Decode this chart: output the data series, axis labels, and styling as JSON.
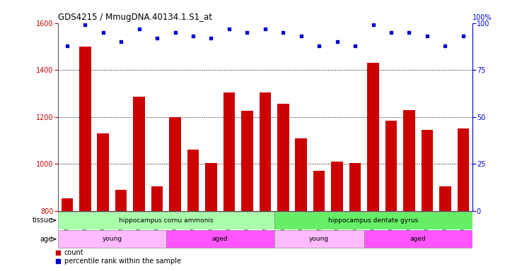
{
  "title": "GDS4215 / MmugDNA.40134.1.S1_at",
  "samples": [
    "GSM297138",
    "GSM297139",
    "GSM297140",
    "GSM297141",
    "GSM297142",
    "GSM297143",
    "GSM297144",
    "GSM297145",
    "GSM297146",
    "GSM297147",
    "GSM297148",
    "GSM297149",
    "GSM297150",
    "GSM297151",
    "GSM297152",
    "GSM297153",
    "GSM297154",
    "GSM297155",
    "GSM297156",
    "GSM297157",
    "GSM297158",
    "GSM297159",
    "GSM297160"
  ],
  "counts": [
    855,
    1500,
    1130,
    890,
    1285,
    905,
    1200,
    1060,
    1005,
    1305,
    1225,
    1305,
    1255,
    1110,
    970,
    1010,
    1005,
    1430,
    1185,
    1230,
    1145,
    905,
    1150
  ],
  "percentile": [
    88,
    99,
    95,
    90,
    97,
    92,
    95,
    93,
    92,
    97,
    95,
    97,
    95,
    93,
    88,
    90,
    88,
    99,
    95,
    95,
    93,
    88,
    93
  ],
  "bar_color": "#cc0000",
  "dot_color": "#0000cc",
  "ylim_left": [
    800,
    1600
  ],
  "ylim_right": [
    0,
    100
  ],
  "yticks_left": [
    800,
    1000,
    1200,
    1400,
    1600
  ],
  "yticks_right": [
    0,
    25,
    50,
    75,
    100
  ],
  "grid_values": [
    1000,
    1200,
    1400
  ],
  "tissue_groups": [
    {
      "label": "hippocampus cornu ammonis",
      "start": 0,
      "end": 12,
      "color": "#aaffaa"
    },
    {
      "label": "hippocampus dentate gyrus",
      "start": 12,
      "end": 23,
      "color": "#66ee66"
    }
  ],
  "age_groups": [
    {
      "label": "young",
      "start": 0,
      "end": 6,
      "color": "#ffbbff"
    },
    {
      "label": "aged",
      "start": 6,
      "end": 12,
      "color": "#ff55ff"
    },
    {
      "label": "young",
      "start": 12,
      "end": 17,
      "color": "#ffbbff"
    },
    {
      "label": "aged",
      "start": 17,
      "end": 23,
      "color": "#ff55ff"
    }
  ],
  "bg_color": "#ffffff",
  "plot_bg_color": "#ffffff"
}
